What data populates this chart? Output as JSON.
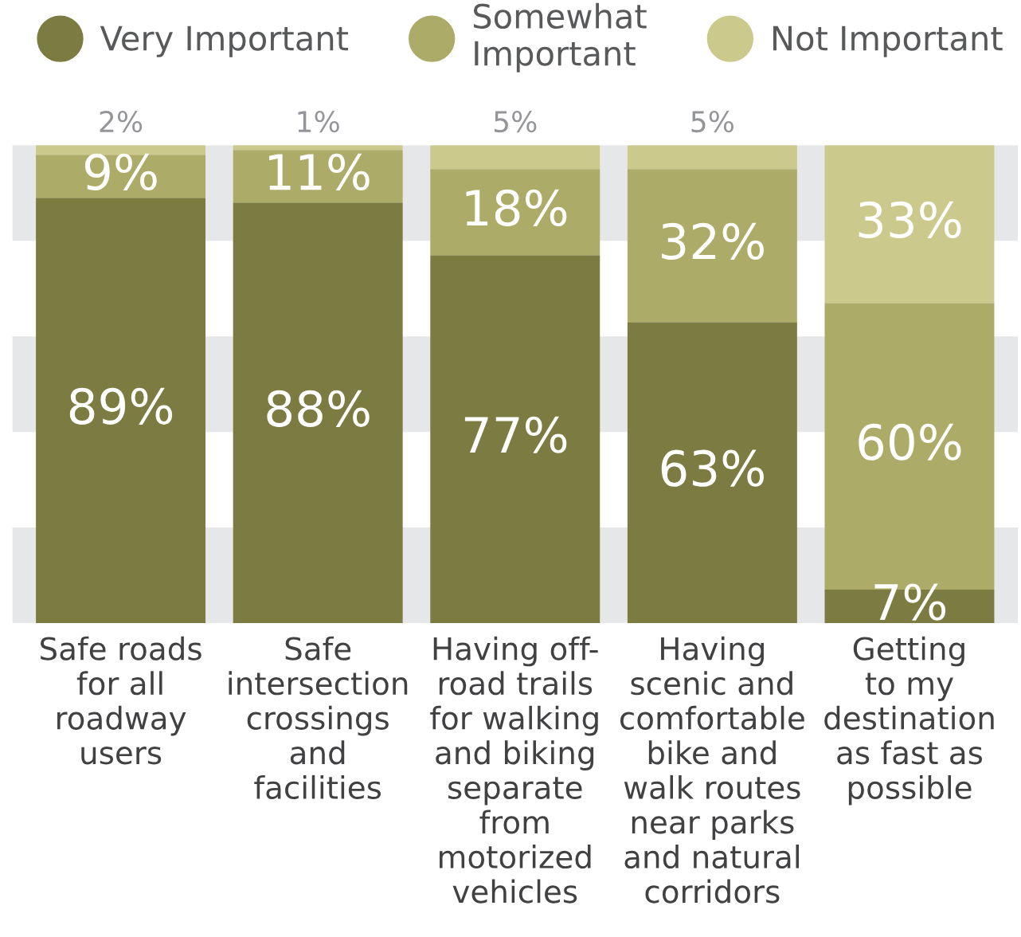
{
  "chart_data": {
    "type": "bar",
    "stacked": true,
    "categories": [
      "Safe roads\nfor all\nroadway\nusers",
      "Safe\nintersection\ncrossings\nand\nfacilities",
      "Having off-\nroad trails\nfor walking\nand biking\nseparate\nfrom\nmotorized\nvehicles",
      "Having\nscenic and\ncomfortable\nbike and\nwalk routes\nnear parks\nand natural\ncorridors",
      "Getting\nto my\ndestination\nas fast as\npossible"
    ],
    "series": [
      {
        "name": "Very Important",
        "color": "#7b7b42",
        "values": [
          89,
          88,
          77,
          63,
          7
        ],
        "value_labels": [
          "89%",
          "88%",
          "77%",
          "63%",
          "7%"
        ]
      },
      {
        "name": "Somewhat\nImportant",
        "color": "#acab68",
        "values": [
          9,
          11,
          18,
          32,
          60
        ],
        "value_labels": [
          "9%",
          "11%",
          "18%",
          "32%",
          "60%"
        ]
      },
      {
        "name": "Not Important",
        "color": "#cbc98c",
        "values": [
          2,
          1,
          5,
          5,
          33
        ],
        "value_labels": [
          "2%",
          "1%",
          "5%",
          "5%",
          "33%"
        ]
      }
    ],
    "ylim": [
      0,
      100
    ],
    "tick_labels": "x",
    "legend": "top",
    "bands": [
      {
        "axis": "y",
        "from": 0,
        "to": 20,
        "color": "#e6e7e8"
      },
      {
        "axis": "y",
        "from": 40,
        "to": 60,
        "color": "#e6e7e8"
      },
      {
        "axis": "y",
        "from": 80,
        "to": 100,
        "color": "#e6e7e8"
      }
    ]
  }
}
